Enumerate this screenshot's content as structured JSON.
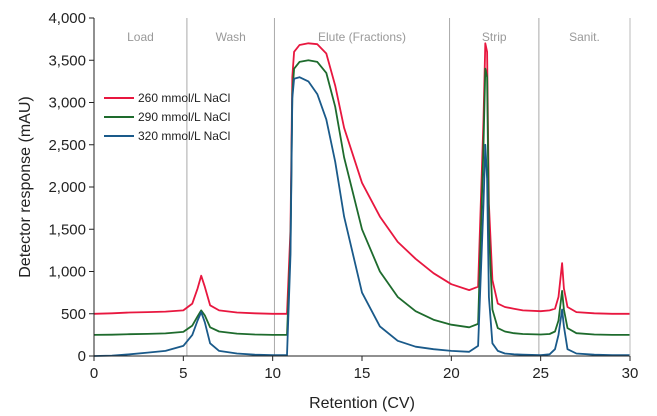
{
  "chart_data": {
    "type": "line",
    "title": "",
    "xlabel": "Retention (CV)",
    "ylabel": "Detector response (mAU)",
    "xlim": [
      0,
      30
    ],
    "ylim": [
      0,
      4000
    ],
    "x_ticks": [
      0,
      5,
      10,
      15,
      20,
      25,
      30
    ],
    "y_ticks": [
      0,
      500,
      1000,
      1500,
      2000,
      2500,
      3000,
      3500,
      4000
    ],
    "y_tick_labels": [
      "0",
      "500",
      "1,000",
      "1,500",
      "2,000",
      "2,500",
      "3,000",
      "3,500",
      "4,000"
    ],
    "grid": false,
    "legend_position": "upper-left",
    "phases": [
      {
        "label": "Load",
        "start": 0,
        "end": 5.2
      },
      {
        "label": "Wash",
        "start": 5.2,
        "end": 10.1
      },
      {
        "label": "Elute (Fractions)",
        "start": 10.1,
        "end": 19.9
      },
      {
        "label": "Strip",
        "start": 19.9,
        "end": 24.9
      },
      {
        "label": "Sanit.",
        "start": 24.9,
        "end": 30
      }
    ],
    "phase_boundaries": [
      5.2,
      10.1,
      19.9,
      24.9
    ],
    "series": [
      {
        "name": "260 mmol/L NaCl",
        "color": "#e8173f",
        "x": [
          0,
          1,
          2,
          3,
          4,
          5,
          5.5,
          5.8,
          6.0,
          6.2,
          6.5,
          7,
          8,
          9,
          10,
          10.8,
          11.0,
          11.1,
          11.2,
          11.5,
          12.0,
          12.5,
          13.0,
          13.5,
          14,
          15,
          16,
          17,
          18,
          19,
          20,
          21,
          21.5,
          21.8,
          21.9,
          22.0,
          22.1,
          22.3,
          22.6,
          23,
          23.5,
          24,
          25,
          25.5,
          25.8,
          26.0,
          26.2,
          26.3,
          26.5,
          27,
          28,
          29,
          30
        ],
        "values": [
          500,
          505,
          515,
          520,
          525,
          540,
          620,
          800,
          950,
          820,
          600,
          540,
          515,
          505,
          500,
          500,
          1500,
          3300,
          3600,
          3680,
          3700,
          3690,
          3580,
          3200,
          2700,
          2050,
          1650,
          1350,
          1150,
          980,
          850,
          780,
          820,
          2800,
          3700,
          3600,
          1800,
          900,
          620,
          580,
          560,
          540,
          530,
          540,
          560,
          700,
          1100,
          800,
          580,
          520,
          505,
          500,
          500
        ]
      },
      {
        "name": "290 mmol/L NaCl",
        "color": "#1e6b2d",
        "x": [
          0,
          1,
          2,
          3,
          4,
          5,
          5.5,
          5.8,
          6.0,
          6.2,
          6.5,
          7,
          8,
          9,
          10,
          10.8,
          11.0,
          11.1,
          11.2,
          11.5,
          12.0,
          12.5,
          13.0,
          13.5,
          14,
          15,
          16,
          17,
          18,
          19,
          20,
          21,
          21.5,
          21.8,
          21.9,
          22.0,
          22.1,
          22.3,
          22.6,
          23,
          23.5,
          24,
          25,
          25.5,
          25.8,
          26.0,
          26.2,
          26.3,
          26.5,
          27,
          28,
          29,
          30
        ],
        "values": [
          250,
          252,
          258,
          262,
          268,
          285,
          360,
          470,
          540,
          480,
          340,
          290,
          265,
          255,
          250,
          250,
          1300,
          3100,
          3400,
          3480,
          3500,
          3480,
          3350,
          2950,
          2350,
          1500,
          1000,
          700,
          530,
          430,
          370,
          340,
          380,
          2500,
          3400,
          3300,
          1500,
          550,
          330,
          290,
          270,
          260,
          255,
          260,
          290,
          420,
          770,
          550,
          330,
          270,
          255,
          250,
          250
        ]
      },
      {
        "name": "320 mmol/L NaCl",
        "color": "#1a5a8a",
        "x": [
          0,
          1,
          2,
          3,
          4,
          5,
          5.5,
          5.8,
          6.0,
          6.2,
          6.5,
          7,
          8,
          9,
          10,
          10.8,
          11.0,
          11.1,
          11.2,
          11.5,
          12.0,
          12.5,
          13.0,
          13.5,
          14,
          15,
          16,
          17,
          18,
          19,
          20,
          21,
          21.5,
          21.8,
          21.9,
          22.0,
          22.1,
          22.3,
          22.6,
          23,
          23.5,
          24,
          25,
          25.5,
          25.8,
          26.0,
          26.2,
          26.3,
          26.5,
          27,
          28,
          29,
          30
        ],
        "values": [
          0,
          5,
          20,
          40,
          60,
          120,
          250,
          420,
          520,
          400,
          150,
          60,
          30,
          15,
          10,
          10,
          1200,
          3050,
          3280,
          3300,
          3250,
          3100,
          2800,
          2300,
          1650,
          750,
          350,
          180,
          110,
          80,
          60,
          50,
          120,
          1800,
          2500,
          2100,
          700,
          150,
          60,
          30,
          20,
          15,
          10,
          20,
          80,
          250,
          550,
          350,
          80,
          30,
          15,
          10,
          10
        ]
      }
    ]
  }
}
